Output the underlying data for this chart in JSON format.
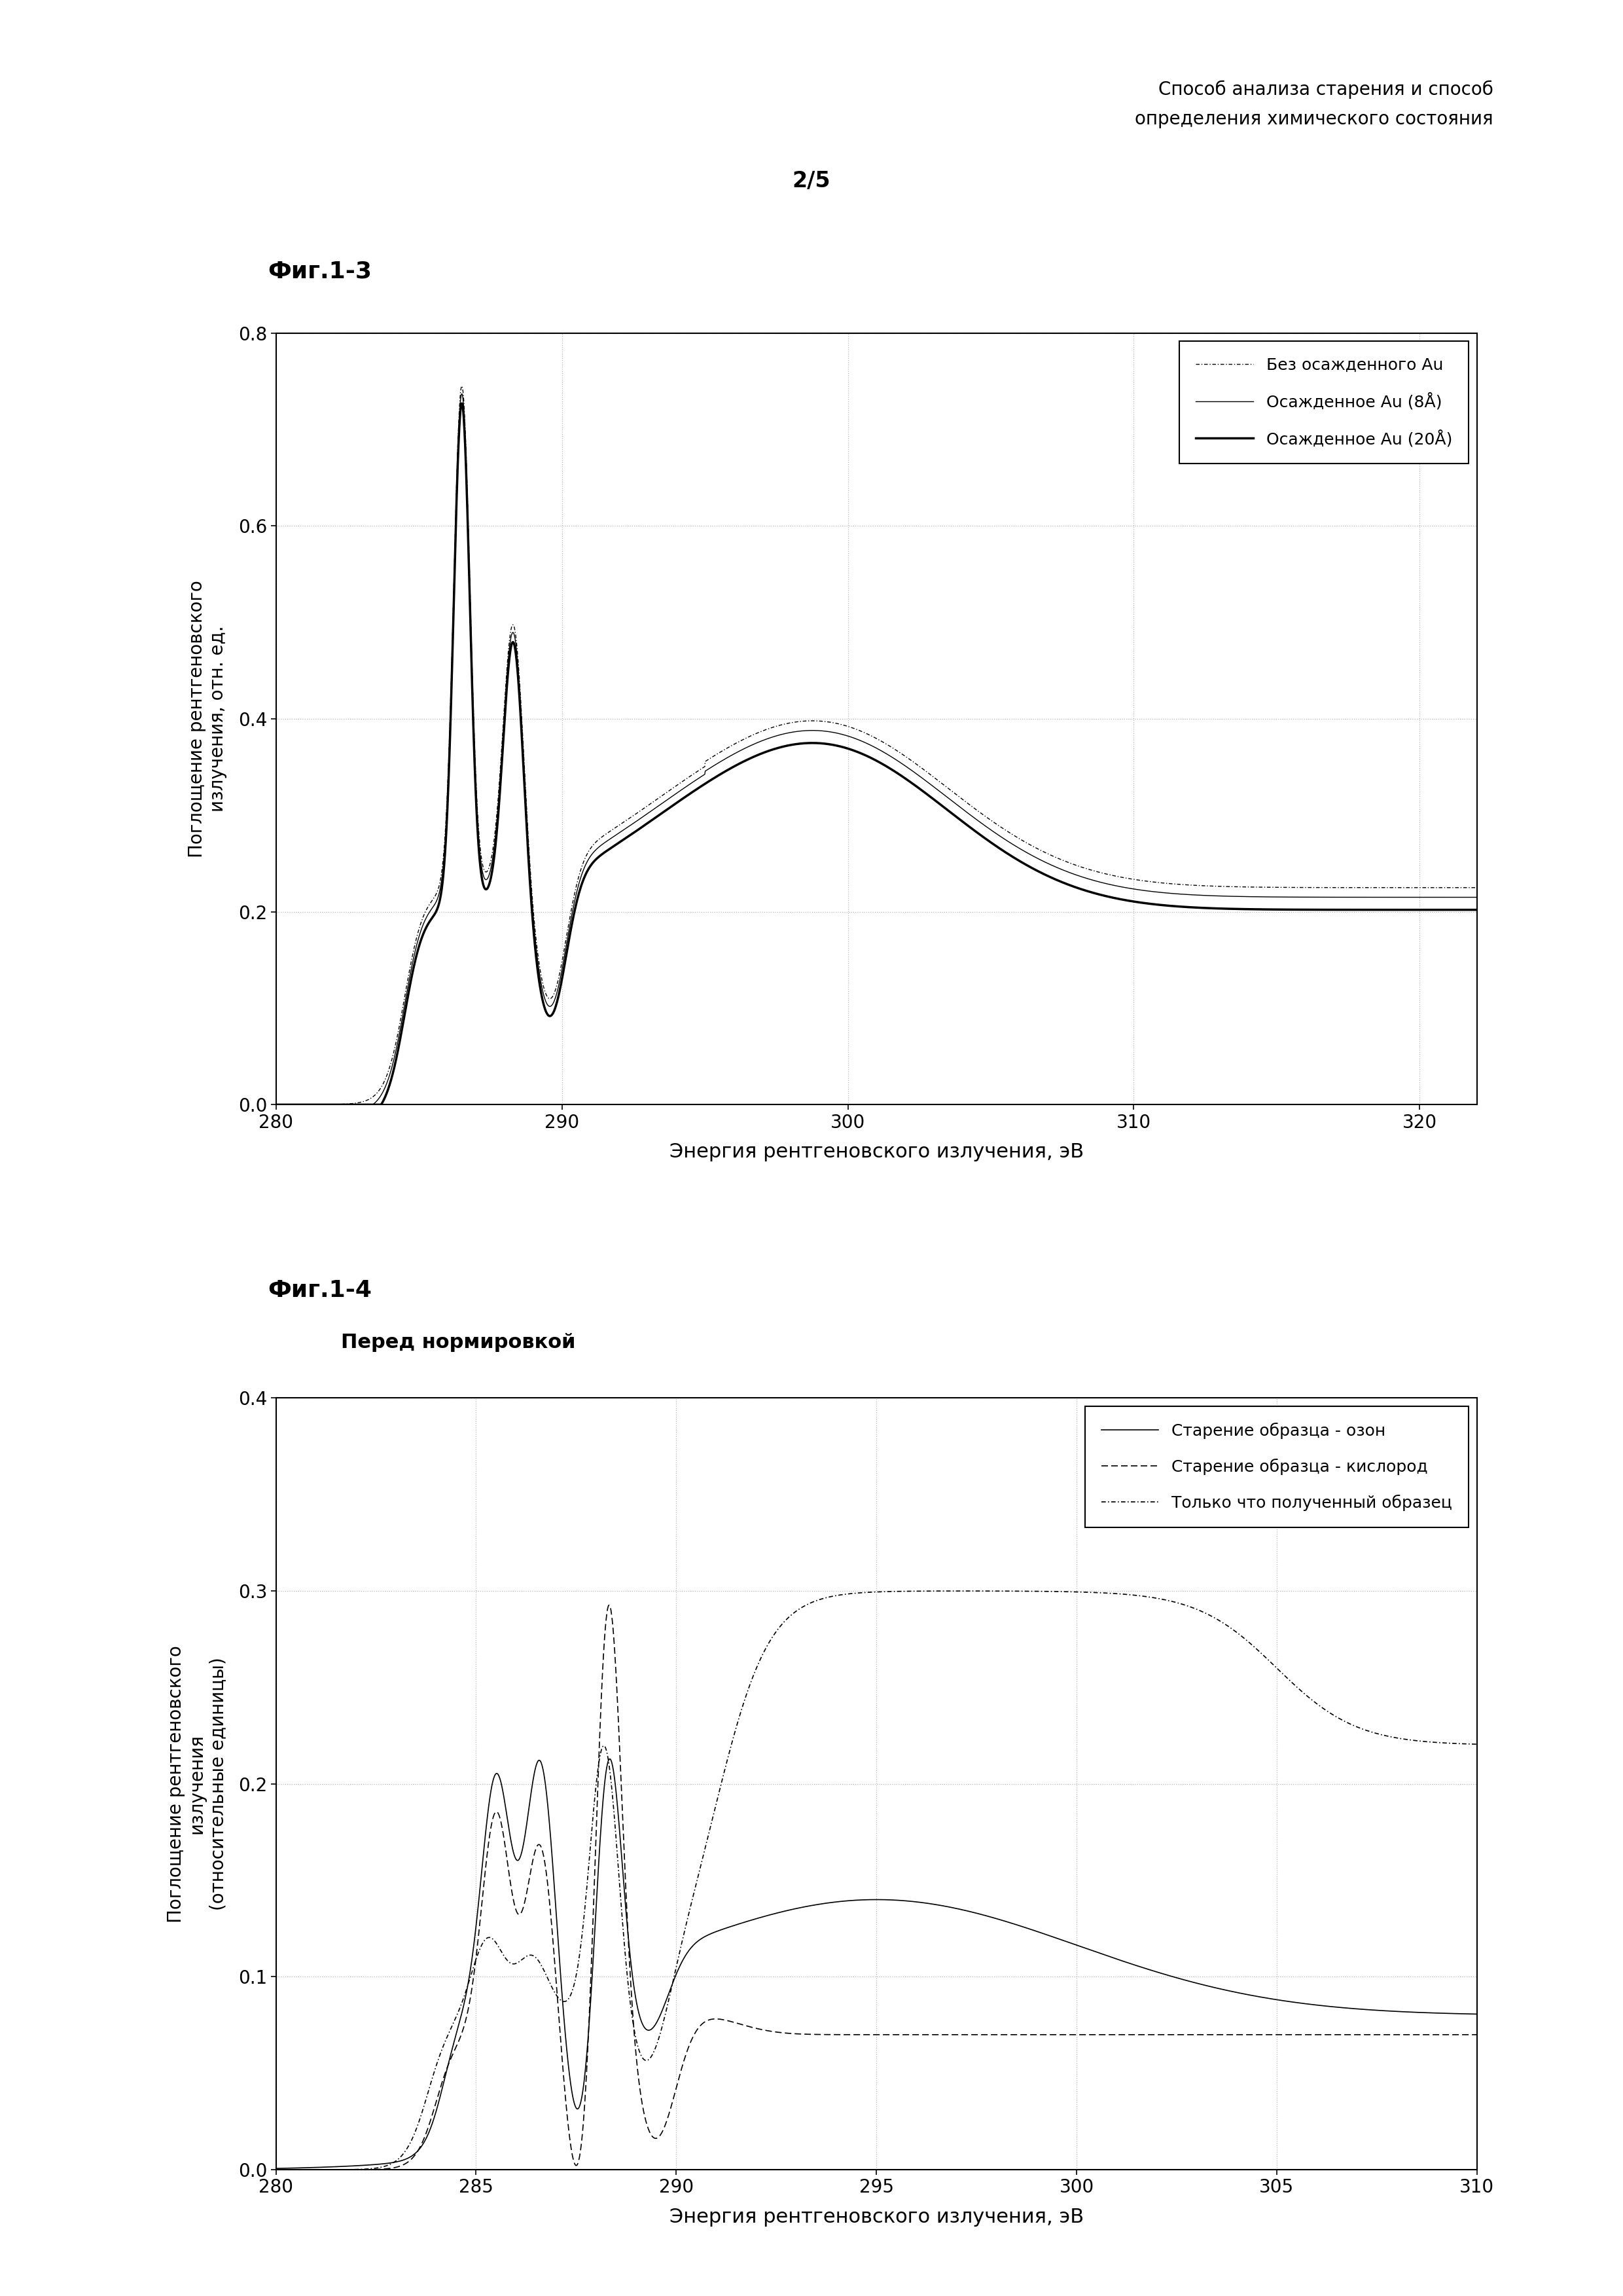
{
  "header_line1": "Способ анализа старения и способ",
  "header_line2": "определения химического состояния",
  "page_number": "2/5",
  "fig1_label": "Фиг.1-3",
  "fig2_label": "Фиг.1-4",
  "fig2_subtitle": "Перед нормировкой",
  "fig1_xlabel": "Энергия рентгеновского излучения, эВ",
  "fig1_ylabel": "Поглощение рентгеновского\nизлучения, отн. ед.",
  "fig1_xlim": [
    280,
    322
  ],
  "fig1_ylim": [
    0,
    0.8
  ],
  "fig1_xticks": [
    280,
    290,
    300,
    310,
    320
  ],
  "fig1_yticks": [
    0,
    0.2,
    0.4,
    0.6,
    0.8
  ],
  "fig2_xlabel": "Энергия рентгеновского излучения, эВ",
  "fig2_ylabel": "Поглощение рентгеновского\nизлучения\n(относительные единицы)",
  "fig2_xlim": [
    280,
    310
  ],
  "fig2_ylim": [
    0,
    0.4
  ],
  "fig2_xticks": [
    280,
    285,
    290,
    295,
    300,
    305,
    310
  ],
  "fig2_yticks": [
    0,
    0.1,
    0.2,
    0.3,
    0.4
  ],
  "legend1_labels": [
    "Без осажденного Au",
    "Осажденное Au (8Å)",
    "Осажденное Au (20Å)"
  ],
  "legend2_labels": [
    "Старение образца - озон",
    "Старение образца - кислород",
    "Только что полученный образец"
  ],
  "background_color": "#ffffff",
  "line_color": "#000000",
  "grid_color": "#888888"
}
